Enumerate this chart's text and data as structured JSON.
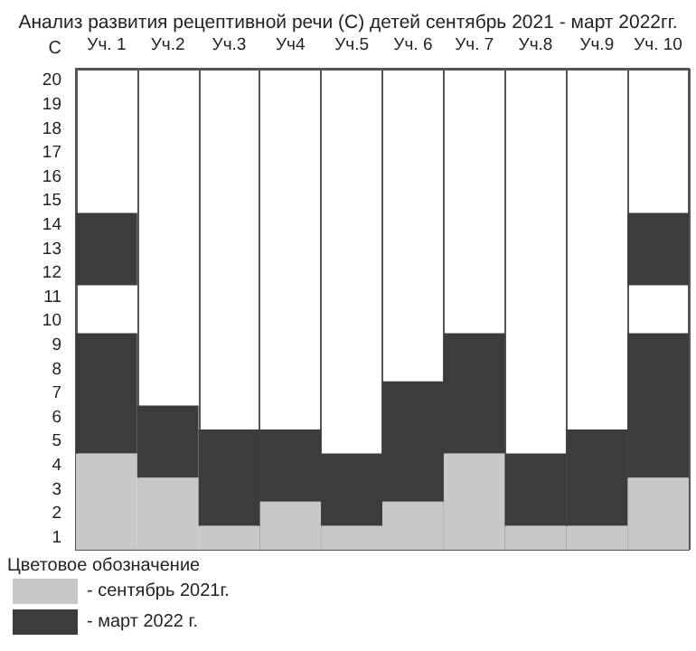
{
  "chart_data": {
    "type": "bar",
    "title": "Анализ развития рецептивной речи (С) детей сентябрь 2021 - март 2022гг.",
    "ylabel": "С",
    "legend_title": "Цветовое обозначение",
    "categories": [
      "Уч. 1",
      "Уч.2",
      "Уч.3",
      "Уч4",
      "Уч.5",
      "Уч. 6",
      "Уч. 7",
      "Уч.8",
      "Уч.9",
      "Уч. 10"
    ],
    "series": [
      {
        "name": "- сентябрь 2021г.",
        "color": "#c8c8c8",
        "base": [
          0.5,
          0.5,
          0.5,
          0.5,
          0.5,
          0.5,
          0.5,
          0.5,
          0.5,
          0.5
        ],
        "values": [
          4,
          3,
          1,
          2,
          1,
          2,
          4,
          1,
          1,
          3
        ]
      },
      {
        "name": "- март 2022 г.",
        "color": "#3c3c3c",
        "base": [
          4.5,
          3.5,
          1.5,
          2.5,
          1.5,
          2.5,
          4.5,
          1.5,
          1.5,
          3.5
        ],
        "values": [
          5,
          3,
          4,
          3,
          3,
          5,
          5,
          3,
          4,
          6
        ]
      },
      {
        "color": "#3c3c3c",
        "base": [
          11.5,
          null,
          null,
          null,
          null,
          null,
          null,
          null,
          null,
          11.5
        ],
        "values": [
          3,
          null,
          null,
          null,
          null,
          null,
          null,
          null,
          null,
          3
        ]
      }
    ],
    "ylim": [
      0.5,
      20.5
    ],
    "yticks": [
      1,
      2,
      3,
      4,
      5,
      6,
      7,
      8,
      9,
      10,
      11,
      12,
      13,
      14,
      15,
      16,
      17,
      18,
      19,
      20
    ],
    "grid": "x",
    "legend": "bottom left"
  }
}
